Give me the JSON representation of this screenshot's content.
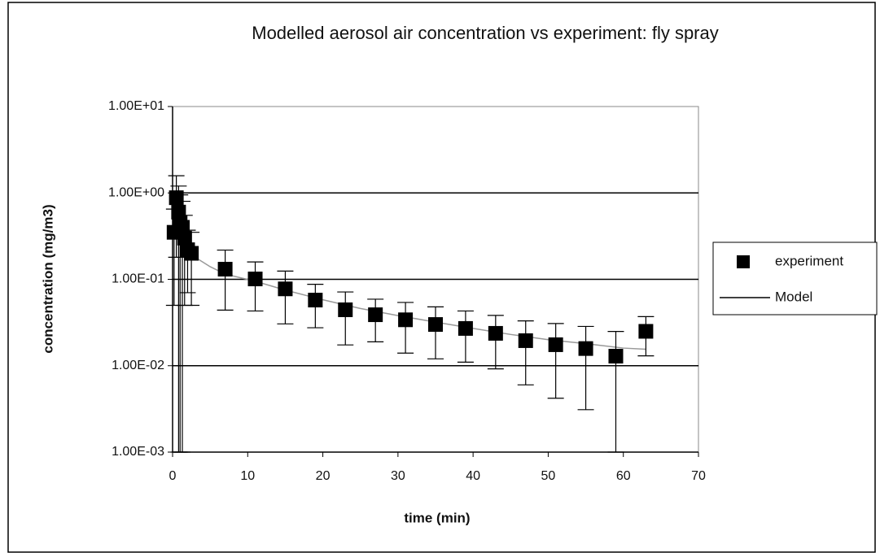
{
  "chart_data": {
    "type": "scatter",
    "title": "Modelled aerosol air concentration vs experiment: fly spray",
    "xlabel": "time (min)",
    "ylabel": "concentration (mg/m3)",
    "xlim": [
      0,
      70
    ],
    "xticks": [
      0,
      10,
      20,
      30,
      40,
      50,
      60,
      70
    ],
    "ylim": [
      0.001,
      10
    ],
    "yticks": [
      {
        "value": 10,
        "label": "1.00E+01"
      },
      {
        "value": 1,
        "label": "1.00E+00"
      },
      {
        "value": 0.1,
        "label": "1.00E-01"
      },
      {
        "value": 0.01,
        "label": "1.00E-02"
      },
      {
        "value": 0.001,
        "label": "1.00E-03"
      }
    ],
    "log_y": true,
    "grid": true,
    "legend": "right",
    "series": [
      {
        "name": "experiment",
        "color": "#000000",
        "marker": "square",
        "x": [
          0.2,
          0.5,
          0.8,
          1.0,
          1.3,
          1.6,
          2.0,
          2.5,
          7,
          11,
          15,
          19,
          23,
          27,
          31,
          35,
          39,
          43,
          47,
          51,
          55,
          59,
          63
        ],
        "values": [
          0.35,
          0.88,
          0.6,
          0.45,
          0.4,
          0.3,
          0.22,
          0.2,
          0.131,
          0.101,
          0.0775,
          0.0575,
          0.0444,
          0.0389,
          0.034,
          0.03,
          0.027,
          0.0237,
          0.0195,
          0.0175,
          0.0158,
          0.0129,
          0.025
        ],
        "errors": [
          0.3,
          0.7,
          0.6,
          0.5,
          0.4,
          0.25,
          0.15,
          0.15,
          0.087,
          0.058,
          0.047,
          0.03,
          0.027,
          0.02,
          0.02,
          0.018,
          0.016,
          0.0145,
          0.0135,
          0.0133,
          0.0127,
          0.012,
          0.012
        ]
      },
      {
        "name": "Model",
        "color": "#999999",
        "legend_color": "#000000",
        "type": "line",
        "x": [
          0.5,
          1,
          2,
          3,
          5,
          7,
          11,
          15,
          20,
          25,
          30,
          35,
          40,
          45,
          50,
          55,
          60,
          63
        ],
        "values": [
          0.9,
          0.6,
          0.3,
          0.18,
          0.14,
          0.115,
          0.095,
          0.075,
          0.058,
          0.046,
          0.038,
          0.032,
          0.027,
          0.023,
          0.02,
          0.018,
          0.016,
          0.0155
        ]
      }
    ]
  }
}
